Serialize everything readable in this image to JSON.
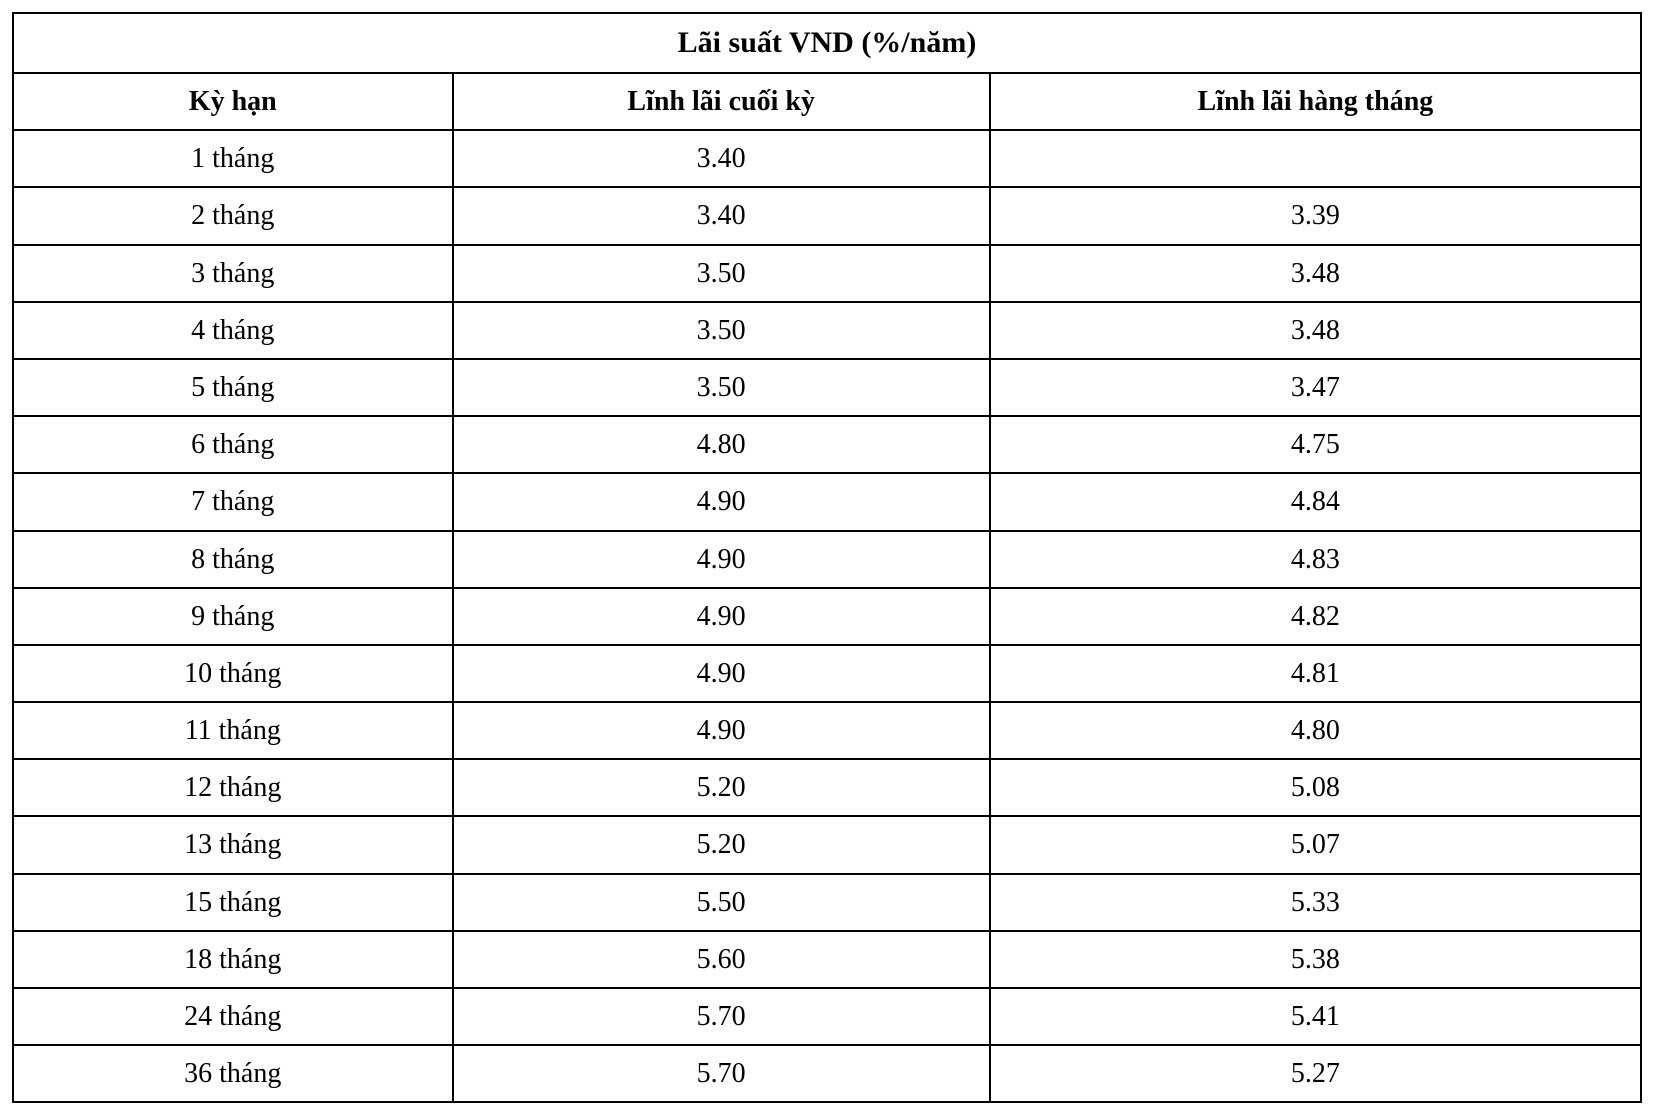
{
  "table": {
    "type": "table",
    "title": "Lãi suất VND (%/năm)",
    "columns": [
      "Kỳ hạn",
      "Lĩnh lãi cuối kỳ",
      "Lĩnh lãi hàng tháng"
    ],
    "column_widths_pct": [
      27,
      33,
      40
    ],
    "rows": [
      [
        "1 tháng",
        "3.40",
        ""
      ],
      [
        "2 tháng",
        "3.40",
        "3.39"
      ],
      [
        "3 tháng",
        "3.50",
        "3.48"
      ],
      [
        "4 tháng",
        "3.50",
        "3.48"
      ],
      [
        "5 tháng",
        "3.50",
        "3.47"
      ],
      [
        "6 tháng",
        "4.80",
        "4.75"
      ],
      [
        "7 tháng",
        "4.90",
        "4.84"
      ],
      [
        "8 tháng",
        "4.90",
        "4.83"
      ],
      [
        "9 tháng",
        "4.90",
        "4.82"
      ],
      [
        "10 tháng",
        "4.90",
        "4.81"
      ],
      [
        "11 tháng",
        "4.90",
        "4.80"
      ],
      [
        "12 tháng",
        "5.20",
        "5.08"
      ],
      [
        "13 tháng",
        "5.20",
        "5.07"
      ],
      [
        "15 tháng",
        "5.50",
        "5.33"
      ],
      [
        "18 tháng",
        "5.60",
        "5.38"
      ],
      [
        "24 tháng",
        "5.70",
        "5.41"
      ],
      [
        "36 tháng",
        "5.70",
        "5.27"
      ]
    ],
    "border_color": "#000000",
    "background_color": "#ffffff",
    "text_color": "#000000",
    "font_family": "Times New Roman",
    "header_font_weight": "bold",
    "title_fontsize": 30,
    "header_fontsize": 28,
    "cell_fontsize": 28,
    "text_align": "center"
  }
}
